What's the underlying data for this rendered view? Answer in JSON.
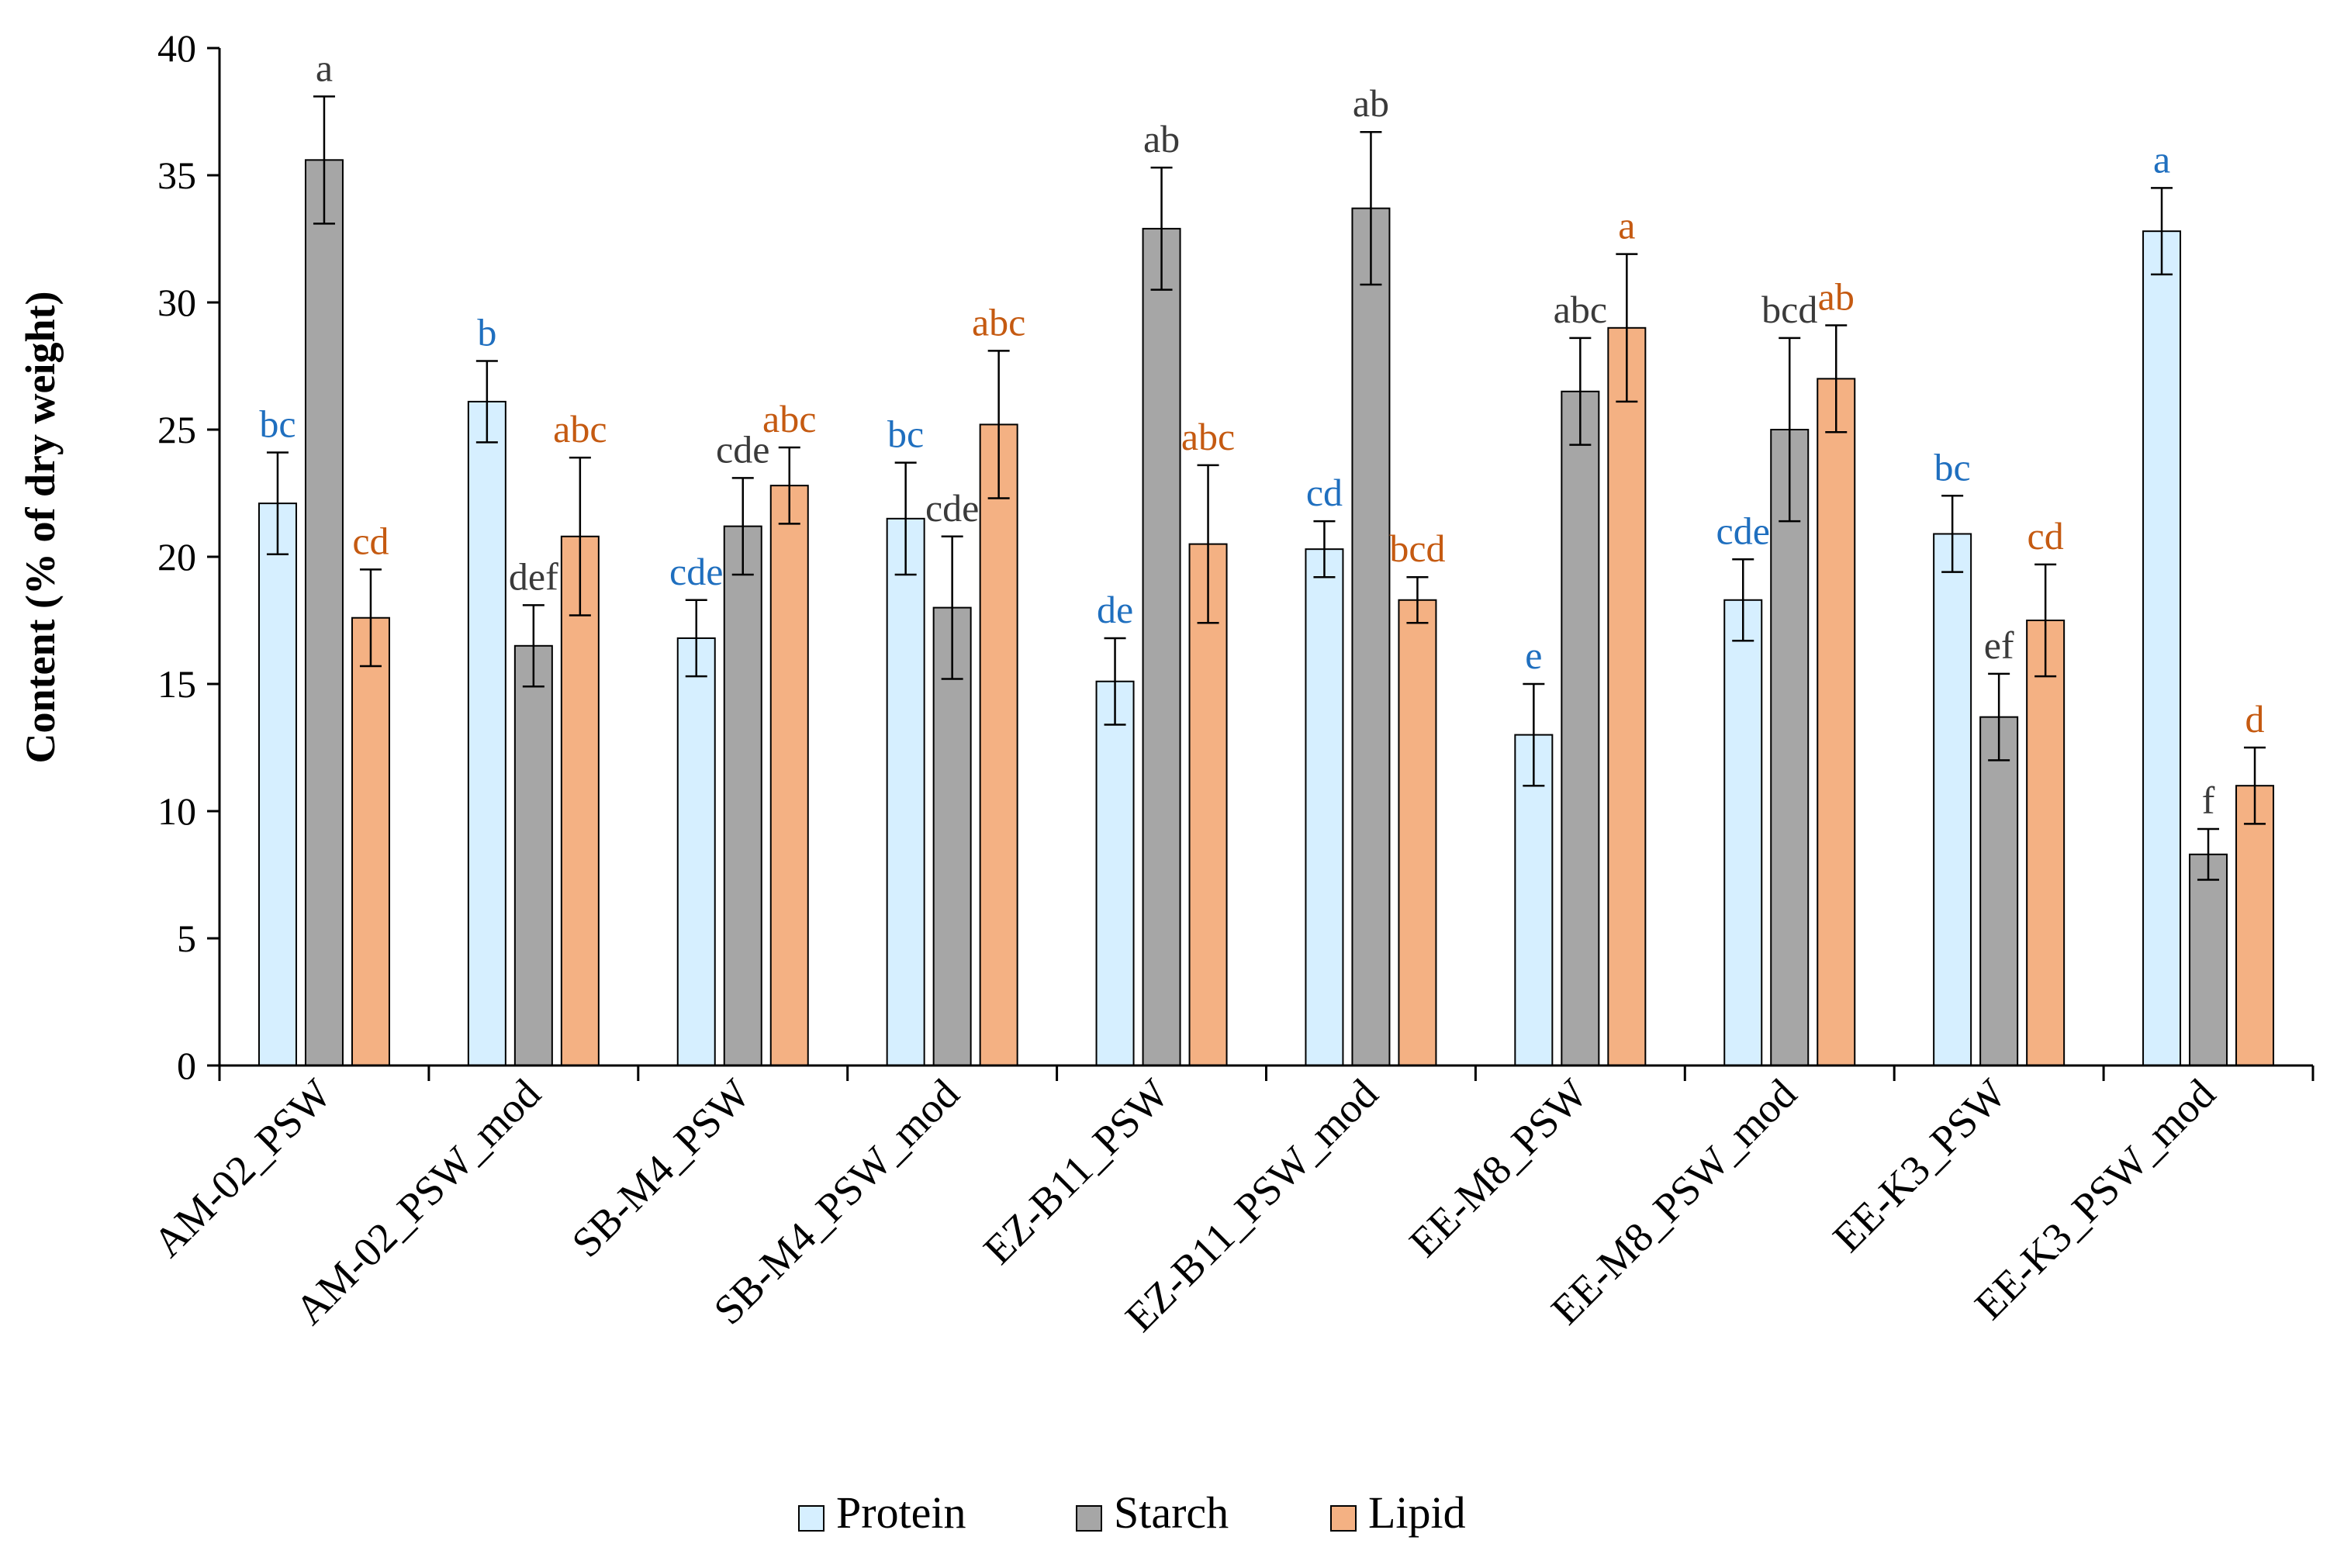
{
  "chart_data": {
    "type": "bar",
    "title": "",
    "xlabel": "",
    "ylabel": "Content (% of dry weight)",
    "ylim": [
      0,
      40
    ],
    "yticks": [
      0,
      5,
      10,
      15,
      20,
      25,
      30,
      35,
      40
    ],
    "grid": false,
    "legend_position": "bottom-center",
    "categories": [
      "AM-02_PSW",
      "AM-02_PSW_mod",
      "SB-M4_PSW",
      "SB-M4_PSW_mod",
      "EZ-B11_PSW",
      "EZ-B11_PSW_mod",
      "EE-M8_PSW",
      "EE-M8_PSW_mod",
      "EE-K3_PSW",
      "EE-K3_PSW_mod"
    ],
    "series": [
      {
        "name": "Protein",
        "color": "#d6efff",
        "letter_color": "#1f6fbf",
        "values": [
          22.1,
          26.1,
          16.8,
          21.5,
          15.1,
          20.3,
          13.0,
          18.3,
          20.9,
          32.8
        ],
        "errors": [
          2.0,
          1.6,
          1.5,
          2.2,
          1.7,
          1.1,
          2.0,
          1.6,
          1.5,
          1.7
        ],
        "letters": [
          "bc",
          "b",
          "cde",
          "bc",
          "de",
          "cd",
          "e",
          "cde",
          "bc",
          "a"
        ]
      },
      {
        "name": "Starch",
        "color": "#a6a6a6",
        "letter_color": "#3a3a3a",
        "values": [
          35.6,
          16.5,
          21.2,
          18.0,
          32.9,
          33.7,
          26.5,
          25.0,
          13.7,
          8.3
        ],
        "errors": [
          2.5,
          1.6,
          1.9,
          2.8,
          2.4,
          3.0,
          2.1,
          3.6,
          1.7,
          1.0
        ],
        "letters": [
          "a",
          "def",
          "cde",
          "cde",
          "ab",
          "ab",
          "abc",
          "bcd",
          "ef",
          "f"
        ]
      },
      {
        "name": "Lipid",
        "color": "#f4b183",
        "letter_color": "#c55a11",
        "values": [
          17.6,
          20.8,
          22.8,
          25.2,
          20.5,
          18.3,
          29.0,
          27.0,
          17.5,
          11.0
        ],
        "errors": [
          1.9,
          3.1,
          1.5,
          2.9,
          3.1,
          0.9,
          2.9,
          2.1,
          2.2,
          1.5
        ],
        "letters": [
          "cd",
          "abc",
          "abc",
          "abc",
          "abc",
          "bcd",
          "a",
          "ab",
          "cd",
          "d"
        ]
      }
    ]
  }
}
